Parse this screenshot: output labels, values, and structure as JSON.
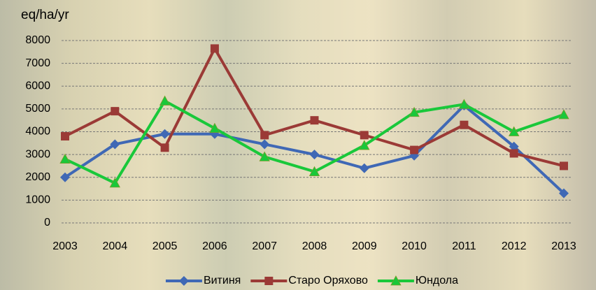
{
  "chart_data": {
    "type": "line",
    "y_axis_label": "eq/ha/yr",
    "categories": [
      "2003",
      "2004",
      "2005",
      "2006",
      "2007",
      "2008",
      "2009",
      "2010",
      "2011",
      "2012",
      "2013"
    ],
    "series": [
      {
        "name": "Витиня",
        "color": "#3f68b5",
        "marker": "diamond",
        "values": [
          2000,
          3450,
          3900,
          3900,
          3450,
          3000,
          2400,
          2950,
          5150,
          3350,
          1300
        ]
      },
      {
        "name": "Старо Оряхово",
        "color": "#9b3a36",
        "marker": "square",
        "values": [
          3800,
          4900,
          3300,
          7650,
          3850,
          4500,
          3850,
          3200,
          4300,
          3050,
          2500
        ]
      },
      {
        "name": "Юндола",
        "color": "#19c83a",
        "marker": "triangle",
        "values": [
          2800,
          1750,
          5350,
          4150,
          2900,
          2250,
          3400,
          4850,
          5200,
          4000,
          4750
        ]
      }
    ],
    "ylim": [
      0,
      8000
    ],
    "yticks": [
      0,
      1000,
      2000,
      3000,
      4000,
      5000,
      6000,
      7000,
      8000
    ],
    "grid": true,
    "legend": "bottom"
  }
}
